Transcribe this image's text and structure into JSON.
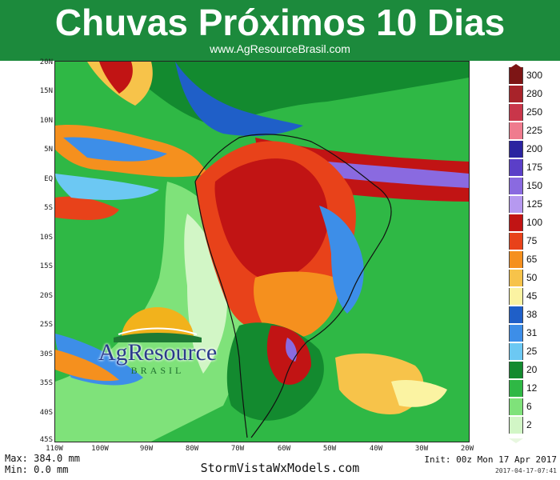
{
  "header": {
    "title": "Chuvas Próximos 10 Dias",
    "website": "www.AgResourceBrasil.com",
    "background_color": "#1c8a3c"
  },
  "map": {
    "lat_labels": [
      "20N",
      "15N",
      "10N",
      "5N",
      "EQ",
      "5S",
      "10S",
      "15S",
      "20S",
      "25S",
      "30S",
      "35S",
      "40S",
      "45S"
    ],
    "lon_labels": [
      "110W",
      "100W",
      "90W",
      "80W",
      "70W",
      "60W",
      "50W",
      "40W",
      "30W",
      "20W"
    ]
  },
  "legend": {
    "top_arrow_color": "#7d1515",
    "bottom_arrow_color": "#e8f7e0",
    "items": [
      {
        "label": "300",
        "color": "#7d1515"
      },
      {
        "label": "280",
        "color": "#a8232a"
      },
      {
        "label": "250",
        "color": "#c9364a"
      },
      {
        "label": "225",
        "color": "#ef7b8e"
      },
      {
        "label": "200",
        "color": "#2b24a0"
      },
      {
        "label": "175",
        "color": "#5b3fc8"
      },
      {
        "label": "150",
        "color": "#8a6ae0"
      },
      {
        "label": "125",
        "color": "#b699f0"
      },
      {
        "label": "100",
        "color": "#c11414"
      },
      {
        "label": "75",
        "color": "#e8421a"
      },
      {
        "label": "65",
        "color": "#f5901e"
      },
      {
        "label": "50",
        "color": "#f7c34a"
      },
      {
        "label": "45",
        "color": "#fbf3a2"
      },
      {
        "label": "38",
        "color": "#1f5fc8"
      },
      {
        "label": "31",
        "color": "#3d8ee8"
      },
      {
        "label": "25",
        "color": "#6cc8f3"
      },
      {
        "label": "20",
        "color": "#138a2f"
      },
      {
        "label": "12",
        "color": "#2fb845"
      },
      {
        "label": "6",
        "color": "#7fe27a"
      },
      {
        "label": "2",
        "color": "#d2f6c6"
      }
    ]
  },
  "logo": {
    "name": "AgResource",
    "subtitle": "BRASIL"
  },
  "footer": {
    "max": "Max: 384.0 mm",
    "min": "Min: 0.0 mm",
    "credit": "StormVistaWxModels.com",
    "init": "Init: 00z Mon 17 Apr 2017",
    "timestamp": "2017-04-17-07:41"
  }
}
